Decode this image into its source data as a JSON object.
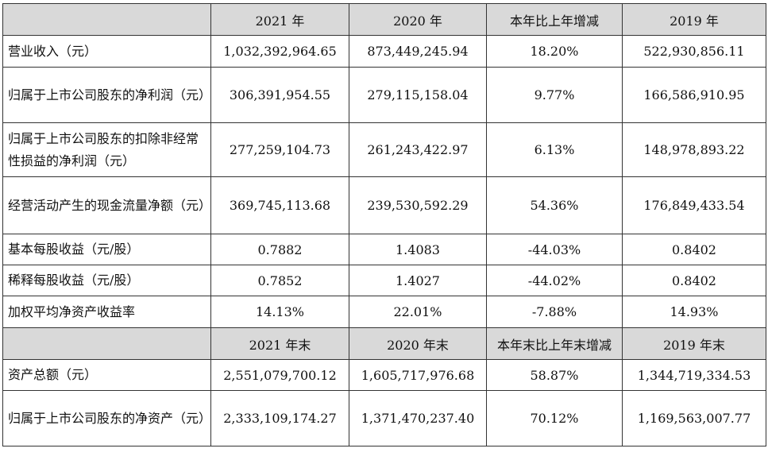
{
  "header1": [
    "",
    "2021 年",
    "2020 年",
    "本年比上年增减",
    "2019 年"
  ],
  "rows1": [
    {
      "label": "营业收入（元）",
      "values": [
        "1,032,392,964.65",
        "873,449,245.94",
        "18.20%",
        "522,930,856.11"
      ]
    },
    {
      "label": "归属于上市公司股东的净利润（元）",
      "values": [
        "306,391,954.55",
        "279,115,158.04",
        "9.77%",
        "166,586,910.95"
      ]
    },
    {
      "label": "归属于上市公司股东的扣除非经常性损益的净利润（元）",
      "values": [
        "277,259,104.73",
        "261,243,422.97",
        "6.13%",
        "148,978,893.22"
      ]
    },
    {
      "label": "经营活动产生的现金流量净额（元）",
      "values": [
        "369,745,113.68",
        "239,530,592.29",
        "54.36%",
        "176,849,433.54"
      ]
    },
    {
      "label": "基本每股收益（元/股）",
      "values": [
        "0.7882",
        "1.4083",
        "-44.03%",
        "0.8402"
      ]
    },
    {
      "label": "稀释每股收益（元/股）",
      "values": [
        "0.7852",
        "1.4027",
        "-44.02%",
        "0.8402"
      ]
    },
    {
      "label": "加权平均净资产收益率",
      "values": [
        "14.13%",
        "22.01%",
        "-7.88%",
        "14.93%"
      ]
    }
  ],
  "header2": [
    "",
    "2021 年末",
    "2020 年末",
    "本年末比上年末增减",
    "2019 年末"
  ],
  "rows2": [
    {
      "label": "资产总额（元）",
      "values": [
        "2,551,079,700.12",
        "1,605,717,976.68",
        "58.87%",
        "1,344,719,334.53"
      ]
    },
    {
      "label": "归属于上市公司股东的净资产（元）",
      "values": [
        "2,333,109,174.27",
        "1,371,470,237.40",
        "70.12%",
        "1,169,563,007.77"
      ]
    }
  ]
}
